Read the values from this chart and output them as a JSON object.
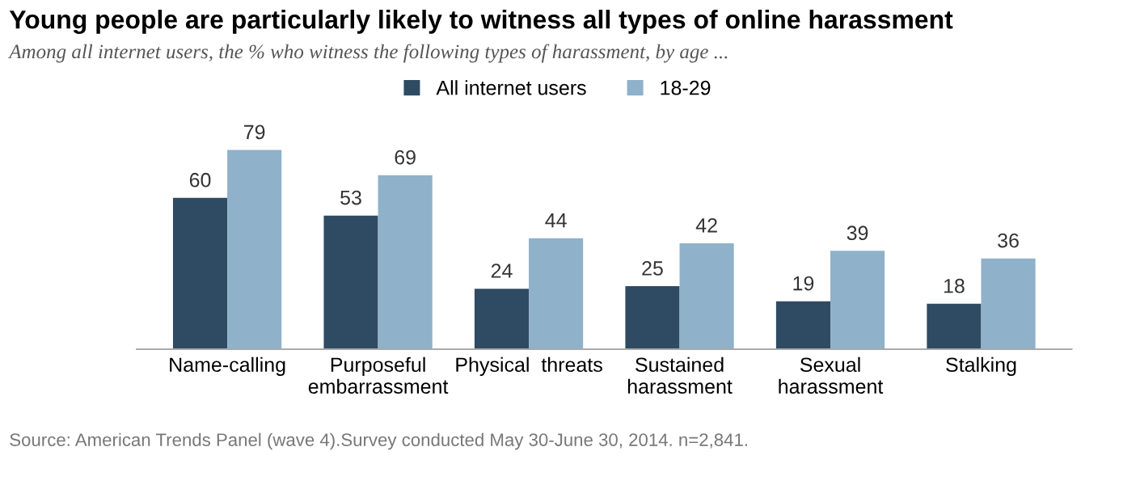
{
  "chart_data": {
    "type": "bar",
    "title": "Young people are particularly likely to witness all types of online harassment",
    "subtitle": "Among all internet users, the % who witness the following types of harassment, by age ...",
    "categories": [
      "Name-calling",
      "Purposeful\nembarrassment",
      "Physical  threats",
      "Sustained\nharassment",
      "Sexual\nharassment",
      "Stalking"
    ],
    "series": [
      {
        "name": "All internet users",
        "color": "#2f4b63",
        "values": [
          60,
          53,
          24,
          25,
          19,
          18
        ]
      },
      {
        "name": "18-29",
        "color": "#8fb1c9",
        "values": [
          79,
          69,
          44,
          42,
          39,
          36
        ]
      }
    ],
    "data_labels": true,
    "legend": "top",
    "grid": false,
    "annotations": [
      "Source: American Trends Panel (wave 4).Survey conducted May 30-June 30, 2014. n=2,841."
    ]
  }
}
